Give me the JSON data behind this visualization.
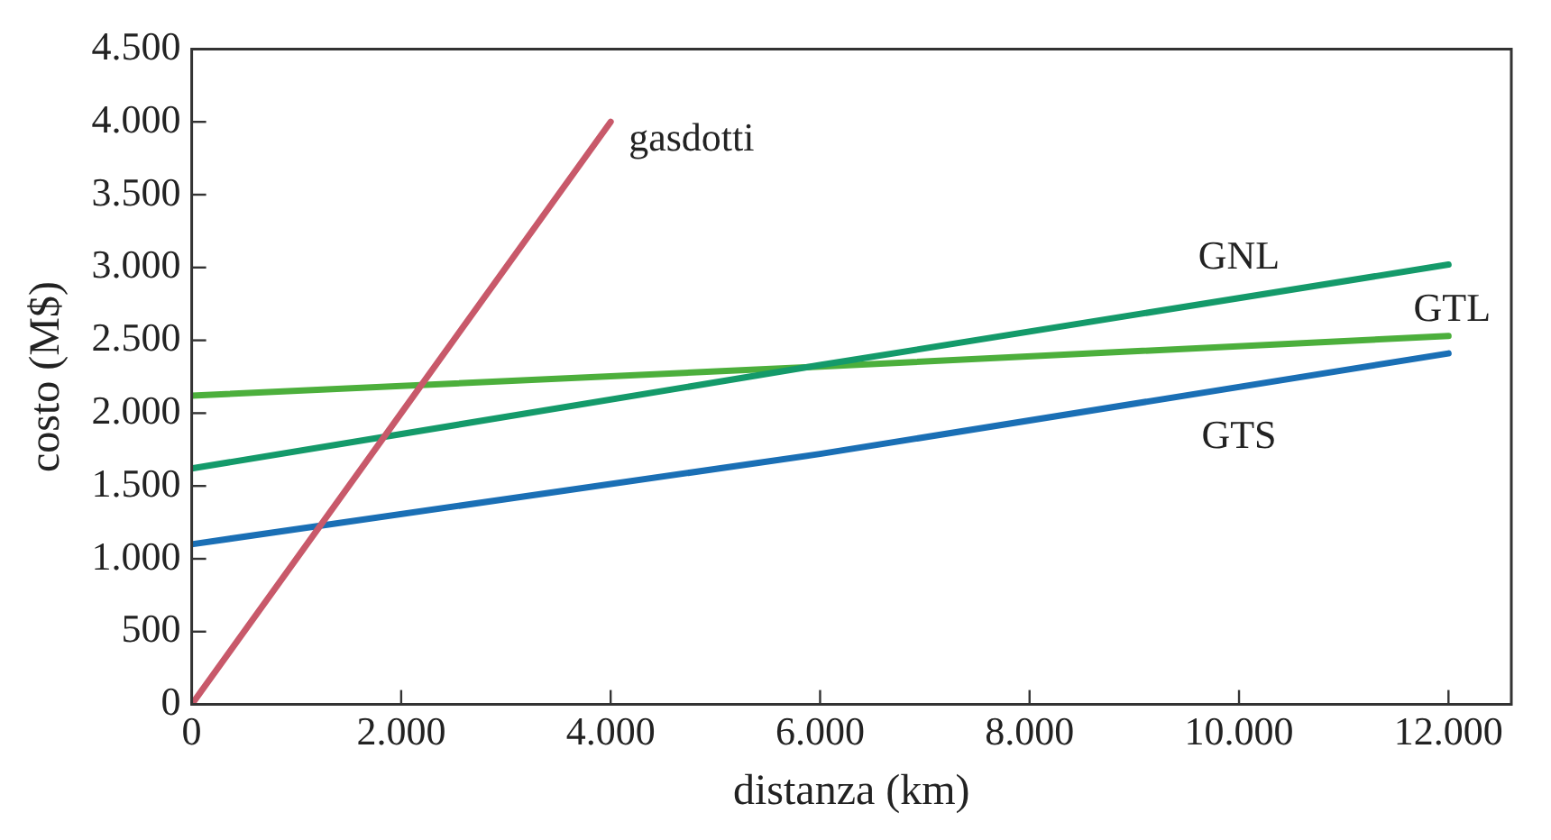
{
  "chart_data": {
    "type": "line",
    "xlabel": "distanza (km)",
    "ylabel": "costo (M$)",
    "xlim": [
      0,
      12600
    ],
    "ylim": [
      0,
      4500
    ],
    "xticks": [
      0,
      {
        "value": 2000,
        "label": "2.000"
      },
      {
        "value": 4000,
        "label": "4.000"
      },
      {
        "value": 6000,
        "label": "6.000"
      },
      {
        "value": 8000,
        "label": "8.000"
      },
      {
        "value": 10000,
        "label": "10.000"
      },
      {
        "value": 12000,
        "label": "12.000"
      }
    ],
    "yticks": [
      0,
      500,
      {
        "value": 1000,
        "label": "1.000"
      },
      {
        "value": 1500,
        "label": "1.500"
      },
      {
        "value": 2000,
        "label": "2.000"
      },
      {
        "value": 2500,
        "label": "2.500"
      },
      {
        "value": 3000,
        "label": "3.000"
      },
      {
        "value": 3500,
        "label": "3.500"
      },
      {
        "value": 4000,
        "label": "4.000"
      },
      {
        "value": 4500,
        "label": "4.500"
      }
    ],
    "grid": false,
    "legend": false,
    "marker": "none",
    "line_style": "solid",
    "series": [
      {
        "name": "gasdotti",
        "color": "#c8596a",
        "x": [
          0,
          2000,
          4000
        ],
        "values": [
          0,
          2000,
          4000
        ]
      },
      {
        "name": "GNL",
        "color": "#149a6a",
        "x": [
          0,
          6000,
          12000
        ],
        "values": [
          1620,
          2330,
          3020
        ]
      },
      {
        "name": "GTL",
        "color": "#4caf3c",
        "x": [
          0,
          6000,
          12000
        ],
        "values": [
          2120,
          2320,
          2530
        ]
      },
      {
        "name": "GTS",
        "color": "#1a6fb5",
        "x": [
          0,
          6000,
          12000
        ],
        "values": [
          1100,
          1720,
          2410
        ]
      }
    ]
  }
}
